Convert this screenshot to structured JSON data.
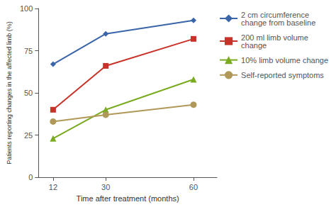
{
  "chart_data": {
    "type": "line",
    "x": [
      12,
      30,
      60
    ],
    "series": [
      {
        "name": "2 cm circumference\nchange from baseline",
        "color": "#3a65a8",
        "marker": "diamond",
        "values": [
          67,
          85,
          93
        ]
      },
      {
        "name": "200 ml limb volume\nchange",
        "color": "#c83228",
        "marker": "square",
        "values": [
          40,
          66,
          82
        ]
      },
      {
        "name": "10% limb volume change",
        "color": "#7aaa20",
        "marker": "triangle",
        "values": [
          23,
          40,
          58
        ]
      },
      {
        "name": "Self-reported symptoms",
        "color": "#b09858",
        "marker": "circle",
        "values": [
          33,
          37,
          43
        ]
      }
    ],
    "xlabel": "Time after treatment (months)",
    "ylabel": "Patients reporting changes in the affected limb (%)",
    "xlim": [
      7,
      68
    ],
    "ylim": [
      0,
      100
    ],
    "xticks": [
      12,
      30,
      60
    ],
    "yticks": [
      0,
      25,
      50,
      75,
      100
    ],
    "grid": false,
    "legend": "right"
  }
}
